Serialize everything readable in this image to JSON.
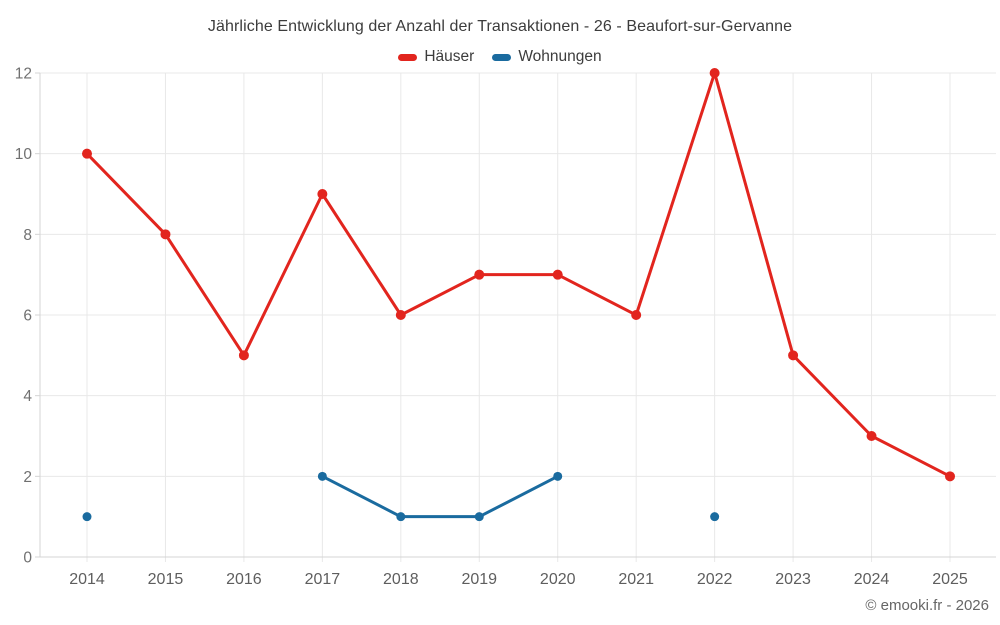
{
  "page": {
    "title": "Jährliche Entwicklung der Anzahl der Transaktionen - 26 - Beaufort-sur-Gervanne"
  },
  "footer": {
    "attribution": "© emooki.fr - 2026"
  },
  "chart_data": {
    "type": "line",
    "title": "Jährliche Entwicklung der Anzahl der Transaktionen - 26 - Beaufort-sur-Gervanne",
    "categories": [
      "2014",
      "2015",
      "2016",
      "2017",
      "2018",
      "2019",
      "2020",
      "2021",
      "2022",
      "2023",
      "2024",
      "2025"
    ],
    "series": [
      {
        "name": "Häuser",
        "color": "#e2251e",
        "values": [
          10,
          8,
          5,
          9,
          6,
          7,
          7,
          6,
          12,
          5,
          3,
          2
        ]
      },
      {
        "name": "Wohnungen",
        "color": "#1a6b9f",
        "values": [
          1,
          null,
          null,
          2,
          1,
          1,
          2,
          null,
          1,
          null,
          null,
          null
        ]
      }
    ],
    "xlabel": "",
    "ylabel": "",
    "ylim": [
      0,
      12
    ],
    "ytick_step": 2,
    "yticks": [
      0,
      2,
      4,
      6,
      8,
      10,
      12
    ],
    "grid": true,
    "legend_position": "top",
    "marker": "circle"
  },
  "colors": {
    "grid": "#e8e8e8",
    "axis": "#d4d4d4",
    "y_tick_label": "#707070",
    "x_tick_label": "#5e5e5e",
    "title_text": "#3c3c3c",
    "footer_text": "#666666",
    "haeuser": "#e2251e",
    "wohnungen": "#1a6b9f"
  }
}
